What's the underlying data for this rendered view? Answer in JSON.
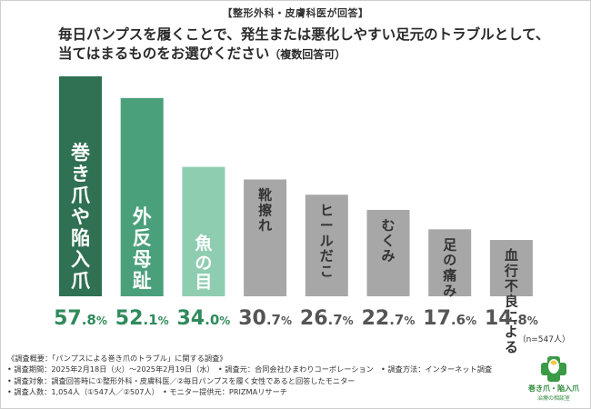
{
  "header_badge": "【整形外科・皮膚科医が回答】",
  "question": {
    "line1": "毎日パンプスを履くことで、発生または悪化しやすい足元のトラブルとして、",
    "line2": "当てはまるものをお選びください",
    "note": "（複数回答可）"
  },
  "colors": {
    "bar1": "#2f7152",
    "bar2": "#4aa07a",
    "bar3": "#8fcdb0",
    "bar_gray": "#a7a7a7",
    "value_green": "#2f8a5c",
    "value_gray": "#555555"
  },
  "chart_data": {
    "type": "bar",
    "title": "毎日パンプスを履くことで、発生または悪化しやすい足元のトラブルとして、当てはまるものをお選びください（複数回答可）",
    "categories": [
      "巻き爪や陥入爪",
      "外反母趾",
      "魚の目",
      "靴擦れ",
      "ヒールだこ",
      "むくみ",
      "足の痛み",
      "血行不良による冷え"
    ],
    "values": [
      57.8,
      52.1,
      34.0,
      30.7,
      26.7,
      22.7,
      17.6,
      14.8
    ],
    "value_labels": [
      {
        "int": "57",
        "dec": ".8",
        "unit": "%"
      },
      {
        "int": "52",
        "dec": ".1",
        "unit": "%"
      },
      {
        "int": "34",
        "dec": ".0",
        "unit": "%"
      },
      {
        "int": "30",
        "dec": ".7",
        "unit": "%"
      },
      {
        "int": "26",
        "dec": ".7",
        "unit": "%"
      },
      {
        "int": "22",
        "dec": ".7",
        "unit": "%"
      },
      {
        "int": "17",
        "dec": ".6",
        "unit": "%"
      },
      {
        "int": "14",
        "dec": ".8",
        "unit": "%"
      }
    ],
    "ylim": [
      0,
      57.8
    ],
    "xlabel": "",
    "ylabel": "",
    "grid": false,
    "sample_size": "（n=547人）"
  },
  "notes": [
    "《調査概要：「パンプスによる巻き爪のトラブル」に関する調査》",
    "• 調査期間：2025年2月18日（火）～2025年2月19日（水）　• 調査元：合同会社ひまわりコーポレーション　• 調査方法：インターネット調査",
    "• 調査対象：調査回答時に①整形外科・皮膚科医／②毎日パンプスを履く女性であると回答したモニター",
    "• 調査人数：1,054人（①547人／②507人）　• モニター提供元：PRIZMAリサーチ"
  ],
  "logo": {
    "line1": "巻き爪・陥入爪",
    "line2": "治療の相談室"
  }
}
